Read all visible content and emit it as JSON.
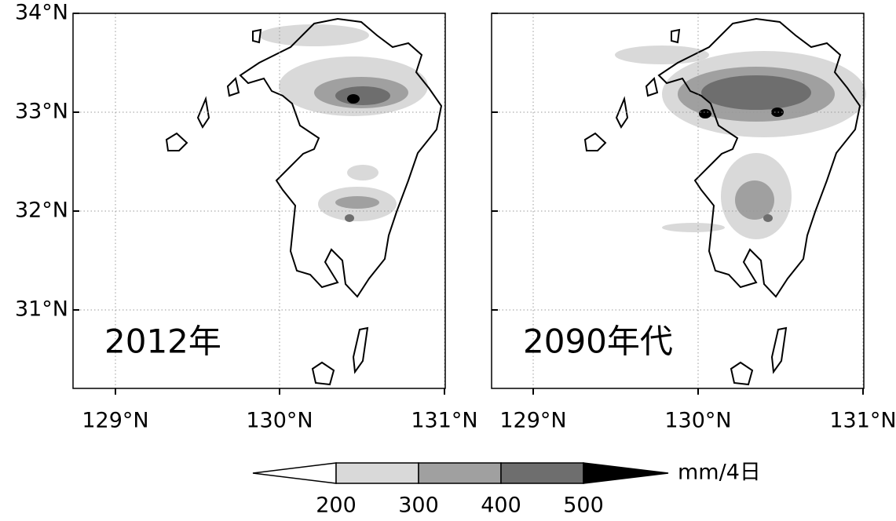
{
  "lat_labels": [
    "34°N",
    "33°N",
    "32°N",
    "31°N"
  ],
  "lon_labels": [
    "129°N",
    "130°N",
    "131°N"
  ],
  "panels": [
    {
      "label": "2012年"
    },
    {
      "label": "2090年代"
    }
  ],
  "colorbar": {
    "levels": [
      200,
      300,
      400,
      500
    ],
    "unit": "mm/4日",
    "colors": [
      "#ffffff",
      "#d9d9d9",
      "#a0a0a0",
      "#6e6e6e",
      "#000000"
    ]
  }
}
